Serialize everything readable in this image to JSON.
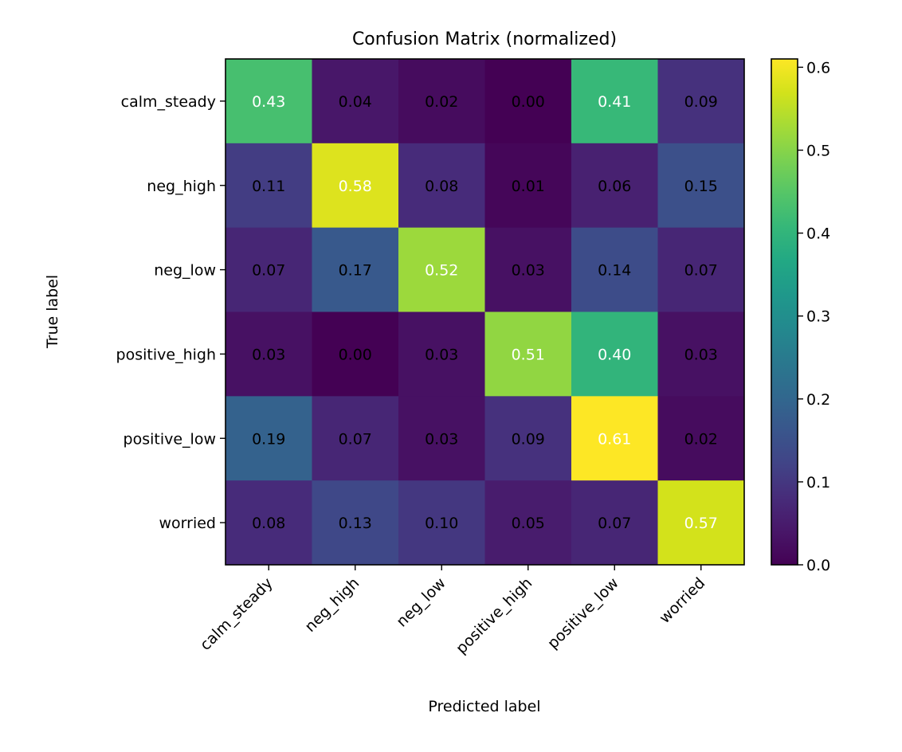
{
  "chart_data": {
    "type": "heatmap",
    "title": "Confusion Matrix (normalized)",
    "xlabel": "Predicted label",
    "ylabel": "True label",
    "x_categories": [
      "calm_steady",
      "neg_high",
      "neg_low",
      "positive_high",
      "positive_low",
      "worried"
    ],
    "y_categories": [
      "calm_steady",
      "neg_high",
      "neg_low",
      "positive_high",
      "positive_low",
      "worried"
    ],
    "values": [
      [
        0.43,
        0.04,
        0.02,
        0.0,
        0.41,
        0.09
      ],
      [
        0.11,
        0.58,
        0.08,
        0.01,
        0.06,
        0.15
      ],
      [
        0.07,
        0.17,
        0.52,
        0.03,
        0.14,
        0.07
      ],
      [
        0.03,
        0.0,
        0.03,
        0.51,
        0.4,
        0.03
      ],
      [
        0.19,
        0.07,
        0.03,
        0.09,
        0.61,
        0.02
      ],
      [
        0.08,
        0.13,
        0.1,
        0.05,
        0.07,
        0.57
      ]
    ],
    "value_format": "0.00",
    "colormap": "viridis",
    "color_range": [
      0.0,
      0.61
    ],
    "colorbar": {
      "ticks": [
        0.0,
        0.1,
        0.2,
        0.3,
        0.4,
        0.5,
        0.6
      ],
      "tick_labels": [
        "0.0",
        "0.1",
        "0.2",
        "0.3",
        "0.4",
        "0.5",
        "0.6"
      ]
    },
    "text_colors": {
      "light": "#ffffff",
      "dark": "#000000"
    },
    "text_threshold": 0.305,
    "grid": false
  }
}
